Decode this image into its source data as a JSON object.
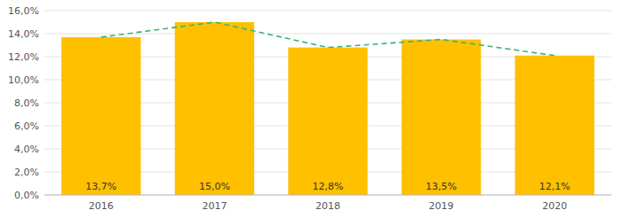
{
  "chart_data": {
    "type": "bar",
    "categories": [
      "2016",
      "2017",
      "2018",
      "2019",
      "2020"
    ],
    "series": [
      {
        "type": "bar",
        "color": "#FFC000",
        "values": [
          13.7,
          15.0,
          12.8,
          13.5,
          12.1
        ],
        "value_labels": [
          "13,7%",
          "15,0%",
          "12,8%",
          "13,5%",
          "12,1%"
        ]
      },
      {
        "type": "line",
        "color": "#3CB371",
        "line_style": "dashed",
        "values": [
          13.7,
          15.0,
          12.8,
          13.5,
          12.1
        ]
      }
    ],
    "ylim": [
      0,
      16
    ],
    "yticks": [
      {
        "value": 0,
        "label": "0,0%"
      },
      {
        "value": 2,
        "label": "2,0%"
      },
      {
        "value": 4,
        "label": "4,0%"
      },
      {
        "value": 6,
        "label": "6,0%"
      },
      {
        "value": 8,
        "label": "8,0%"
      },
      {
        "value": 10,
        "label": "10,0%"
      },
      {
        "value": 12,
        "label": "12,0%"
      },
      {
        "value": 14,
        "label": "14,0%"
      },
      {
        "value": 16,
        "label": "16,0%"
      }
    ],
    "grid": true,
    "data_labels": true
  }
}
